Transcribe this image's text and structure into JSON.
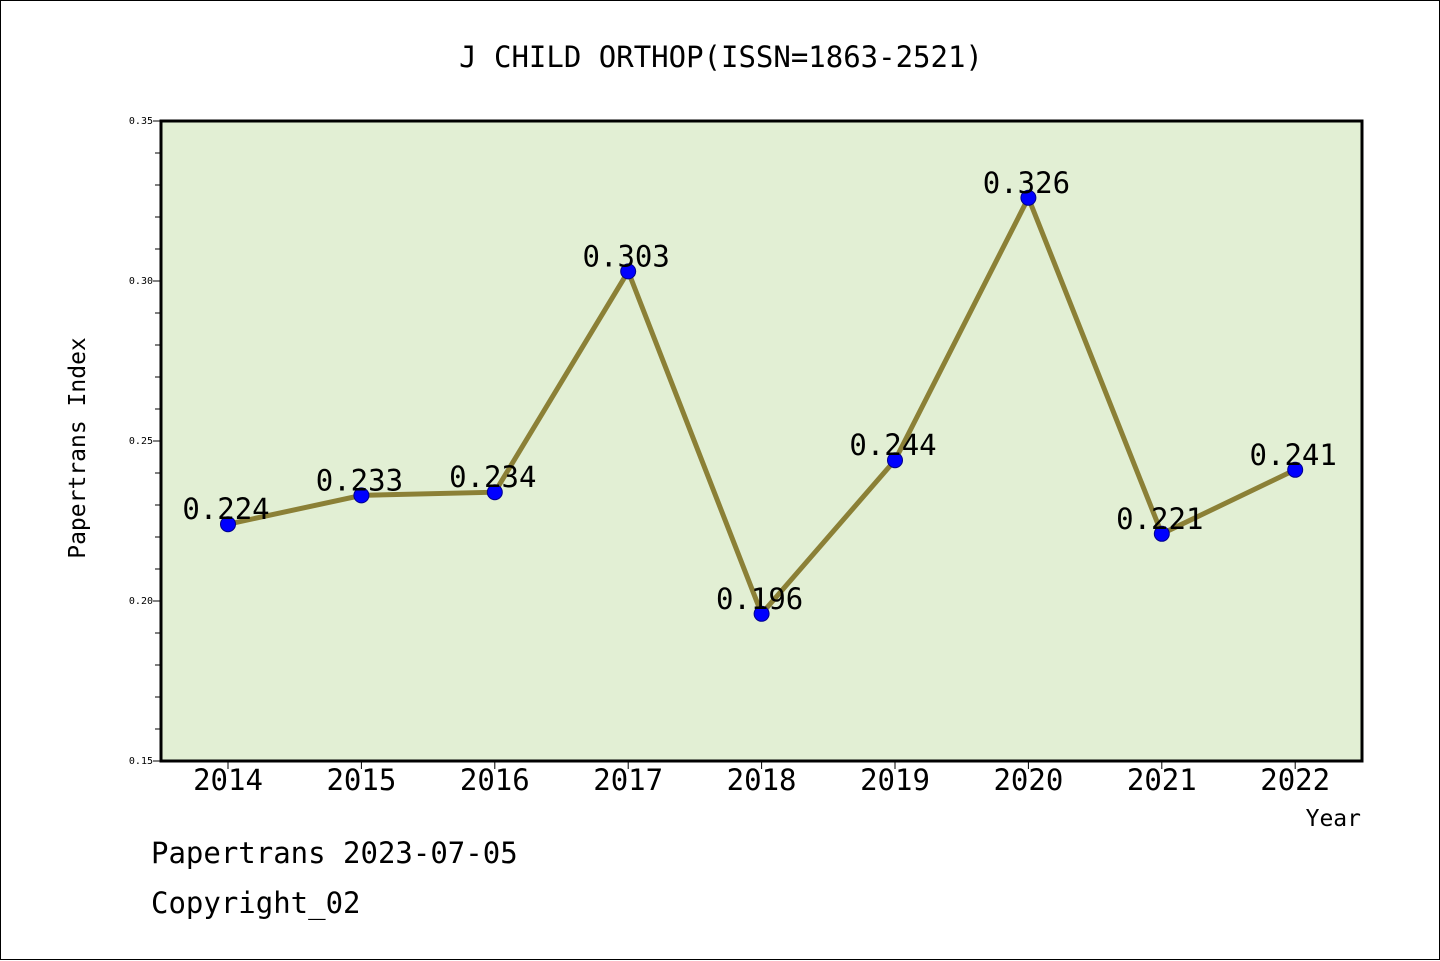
{
  "chart_data": {
    "type": "line",
    "title": "J CHILD ORTHOP(ISSN=1863-2521)",
    "xlabel": "Year",
    "ylabel": "Papertrans Index",
    "categories": [
      "2014",
      "2015",
      "2016",
      "2017",
      "2018",
      "2019",
      "2020",
      "2021",
      "2022"
    ],
    "series": [
      {
        "values": [
          0.224,
          0.233,
          0.234,
          0.303,
          0.196,
          0.244,
          0.326,
          0.221,
          0.241
        ],
        "labels": [
          "0.224",
          "0.233",
          "0.234",
          "0.303",
          "0.196",
          "0.244",
          "0.326",
          "0.221",
          "0.241"
        ]
      }
    ],
    "ylim": [
      0.15,
      0.35
    ],
    "yticks": [
      0.15,
      0.2,
      0.25,
      0.3,
      0.35
    ],
    "ytick_labels": [
      "0.15",
      "0.20",
      "0.25",
      "0.30",
      "0.35"
    ],
    "grid": false,
    "colors": {
      "plot_background": "#e2efd4",
      "line": "#8b8036",
      "marker": "#0000ff"
    }
  },
  "footer": {
    "line1": "Papertrans 2023-07-05",
    "line2": "Copyright_02"
  }
}
